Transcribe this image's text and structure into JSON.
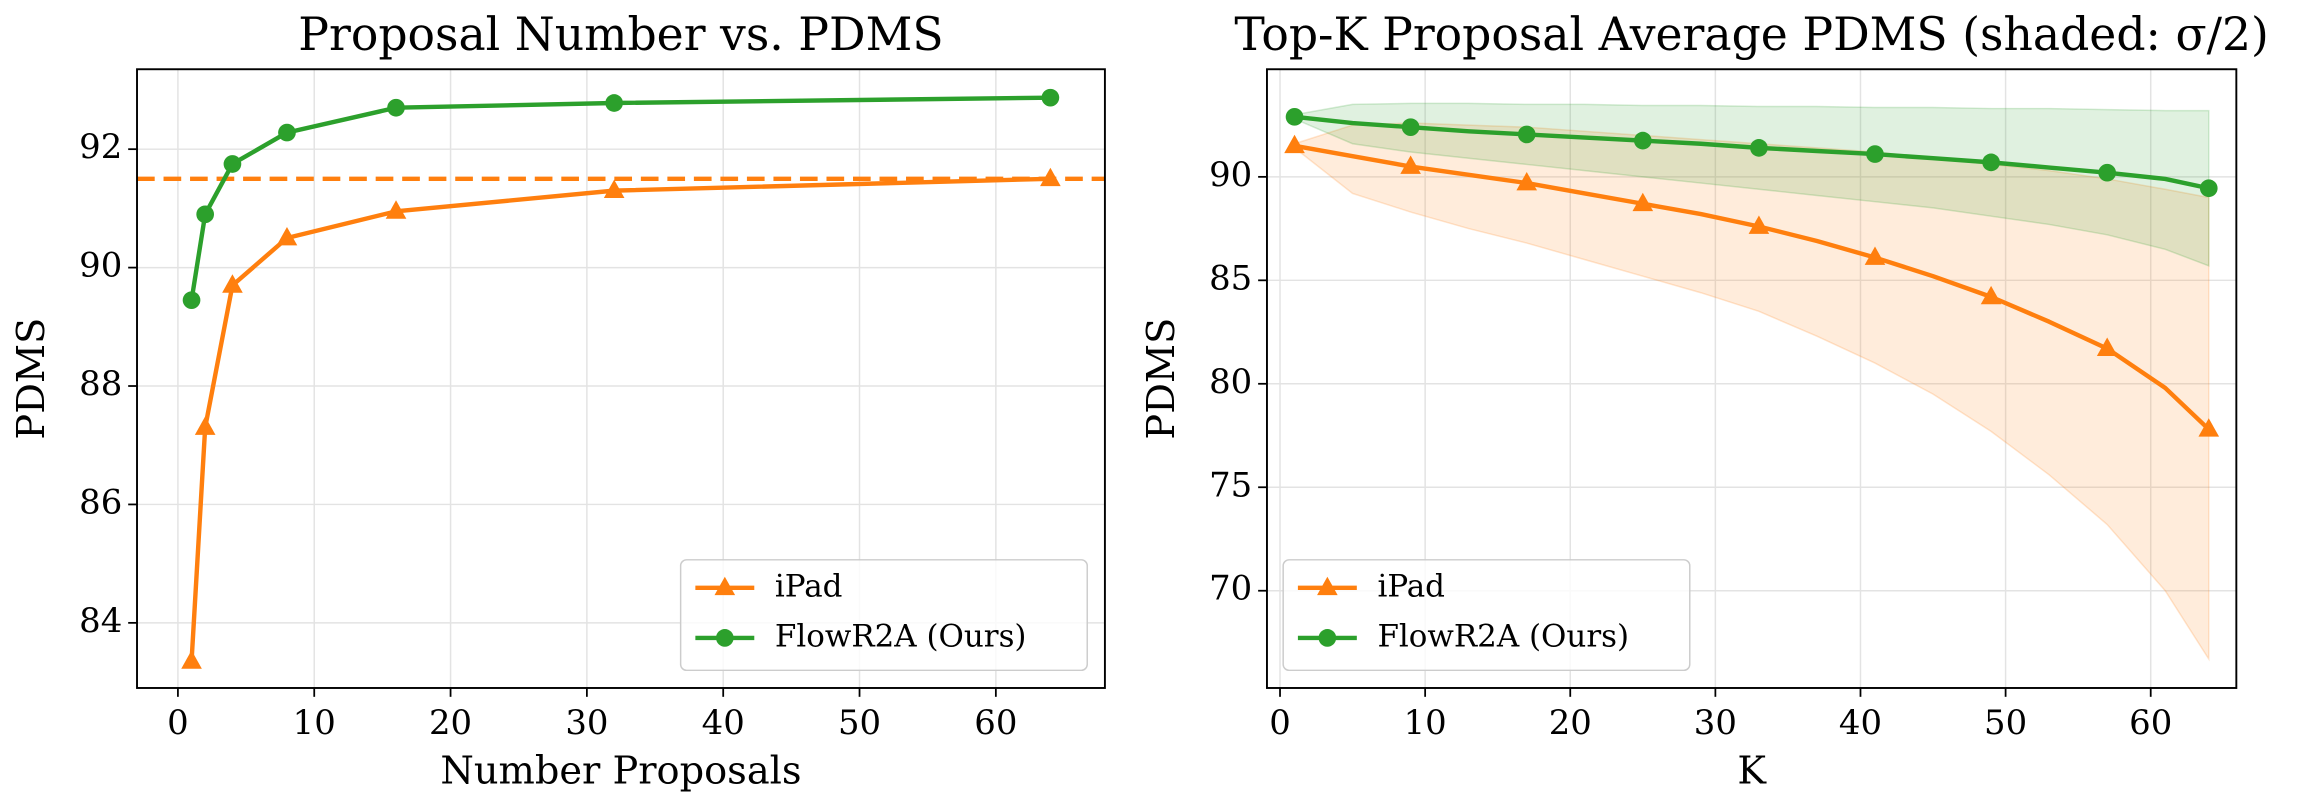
{
  "chart_data": [
    {
      "type": "line",
      "title": "Proposal Number vs. PDMS",
      "xlabel": "Number Proposals",
      "ylabel": "PDMS",
      "x": [
        1,
        2,
        4,
        8,
        16,
        32,
        64
      ],
      "series": [
        {
          "name": "iPad",
          "color": "#ff7f0e",
          "marker": "triangle",
          "values": [
            83.35,
            87.3,
            89.7,
            90.5,
            90.95,
            91.3,
            91.5
          ]
        },
        {
          "name": "FlowR2A (Ours)",
          "color": "#2ca02c",
          "marker": "circle",
          "values": [
            89.45,
            90.9,
            91.75,
            92.28,
            92.7,
            92.78,
            92.87
          ]
        }
      ],
      "reference_line": 91.5,
      "reference_color": "#ff7f0e",
      "xlim": [
        -3,
        68
      ],
      "ylim": [
        82.9,
        93.35
      ],
      "xticks": [
        0,
        10,
        20,
        30,
        40,
        50,
        60
      ],
      "yticks": [
        84,
        86,
        88,
        90,
        92
      ],
      "grid": true,
      "legend": "lower right"
    },
    {
      "type": "line",
      "title": "Top-K Proposal Average PDMS (shaded: σ/2)",
      "xlabel": "K",
      "ylabel": "PDMS",
      "x": [
        1,
        5,
        9,
        13,
        17,
        21,
        25,
        29,
        33,
        37,
        41,
        45,
        49,
        53,
        57,
        61,
        64
      ],
      "markevery": 2,
      "series": [
        {
          "name": "iPad",
          "color": "#ff7f0e",
          "marker": "triangle",
          "values": [
            91.5,
            91.0,
            90.5,
            90.1,
            89.7,
            89.2,
            88.7,
            88.2,
            87.6,
            86.9,
            86.1,
            85.2,
            84.2,
            83.0,
            81.7,
            79.8,
            77.8
          ],
          "upper": [
            91.6,
            92.5,
            92.6,
            92.5,
            92.4,
            92.2,
            92.0,
            91.8,
            91.6,
            91.4,
            91.2,
            90.9,
            90.6,
            90.3,
            89.9,
            89.4,
            89.0
          ],
          "lower": [
            91.4,
            89.2,
            88.3,
            87.5,
            86.8,
            86.0,
            85.2,
            84.4,
            83.5,
            82.3,
            81.0,
            79.5,
            77.7,
            75.6,
            73.2,
            70.0,
            66.7
          ]
        },
        {
          "name": "FlowR2A (Ours)",
          "color": "#2ca02c",
          "marker": "circle",
          "values": [
            92.9,
            92.6,
            92.4,
            92.2,
            92.05,
            91.9,
            91.75,
            91.6,
            91.4,
            91.25,
            91.1,
            90.9,
            90.7,
            90.45,
            90.2,
            89.9,
            89.45
          ],
          "upper": [
            93.0,
            93.5,
            93.55,
            93.55,
            93.5,
            93.5,
            93.45,
            93.45,
            93.4,
            93.4,
            93.35,
            93.35,
            93.3,
            93.3,
            93.25,
            93.2,
            93.2
          ],
          "lower": [
            92.8,
            91.6,
            91.2,
            90.9,
            90.6,
            90.3,
            90.0,
            89.7,
            89.4,
            89.1,
            88.8,
            88.5,
            88.1,
            87.7,
            87.2,
            86.5,
            85.7
          ]
        }
      ],
      "xlim": [
        -0.9,
        65.9
      ],
      "ylim": [
        65.3,
        95.2
      ],
      "xticks": [
        0,
        10,
        20,
        30,
        40,
        50,
        60
      ],
      "yticks": [
        70,
        75,
        80,
        85,
        90
      ],
      "grid": true,
      "legend": "lower left"
    }
  ]
}
